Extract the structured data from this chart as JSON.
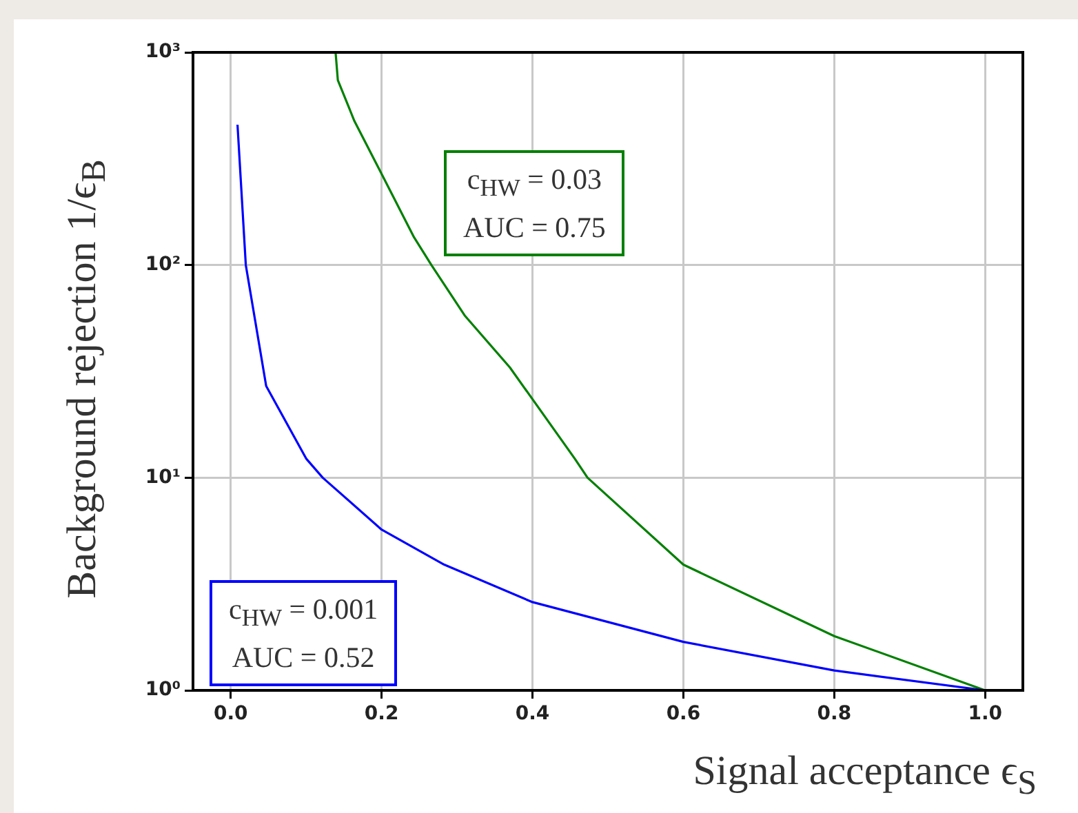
{
  "chart_data": {
    "type": "line",
    "xlabel": "Signal acceptance ϵ$_{S}$",
    "ylabel": "Background rejection 1/ϵ$_{B}$",
    "log": "y",
    "grid": true,
    "legend": false,
    "marker": "none",
    "line_style": "solid",
    "xlim": [
      -0.05,
      1.05
    ],
    "xticks": [
      {
        "value": 0,
        "label": "0.0"
      },
      0.2,
      0.4,
      0.6,
      0.8,
      {
        "value": 1,
        "label": "1.0"
      }
    ],
    "ylim": [
      1,
      1000
    ],
    "yticks": [
      {
        "value": 1,
        "label": "10⁰"
      },
      {
        "value": 10,
        "label": "10¹"
      },
      {
        "value": 100,
        "label": "10²"
      },
      {
        "value": 1000,
        "label": "10³"
      }
    ],
    "series": [
      {
        "color": "#0000ff",
        "x": [
          0.009,
          0.02,
          0.047,
          0.1,
          0.122,
          0.2,
          0.283,
          0.4,
          0.6,
          0.8,
          1.0
        ],
        "values": [
          457,
          100,
          27,
          12.3,
          10,
          5.7,
          3.9,
          2.6,
          1.69,
          1.24,
          1
        ]
      },
      {
        "color": "#008000",
        "x": [
          0.139,
          0.142,
          0.164,
          0.193,
          0.243,
          0.266,
          0.31,
          0.37,
          0.456,
          0.473,
          0.6,
          0.8,
          1.0
        ],
        "values": [
          1000,
          740,
          475,
          300,
          135,
          100,
          58,
          33,
          12.3,
          10,
          3.9,
          1.8,
          1
        ]
      }
    ],
    "annotations": [
      "c$_{HW}$ = 0.001\nAUC = 0.52",
      "c$_{HW}$ = 0.03\nAUC = 0.75"
    ]
  }
}
